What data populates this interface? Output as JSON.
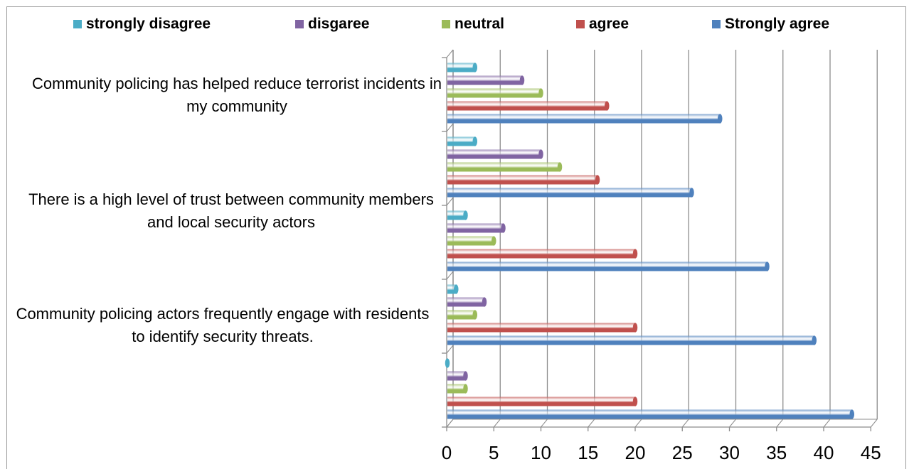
{
  "chart_data": {
    "type": "bar",
    "orientation": "horizontal",
    "style": "3d-cylinder",
    "category_labels": [
      "Community policing has helped reduce terrorist incidents in my community",
      "",
      "There is a high level of trust between community members and local security actors",
      "Community policing actors frequently engage with residents to identify security threats.",
      ""
    ],
    "series": [
      {
        "name": "strongly disagree",
        "color": "#4bacc6",
        "values": [
          3,
          3,
          2,
          1,
          0
        ]
      },
      {
        "name": "disgaree",
        "color": "#8064a2",
        "values": [
          8,
          10,
          6,
          4,
          2
        ]
      },
      {
        "name": "neutral",
        "color": "#9bbb59",
        "values": [
          10,
          12,
          5,
          3,
          2
        ]
      },
      {
        "name": "agree",
        "color": "#c0504d",
        "values": [
          17,
          16,
          20,
          20,
          20
        ]
      },
      {
        "name": "Strongly agree",
        "color": "#4f81bd",
        "values": [
          29,
          26,
          34,
          39,
          43
        ]
      }
    ],
    "x_ticks": [
      "0",
      "5",
      "10",
      "15",
      "20",
      "25",
      "30",
      "35",
      "40",
      "45"
    ],
    "xlim": [
      0,
      45
    ],
    "grid": "vertical",
    "legend_position": "top"
  }
}
